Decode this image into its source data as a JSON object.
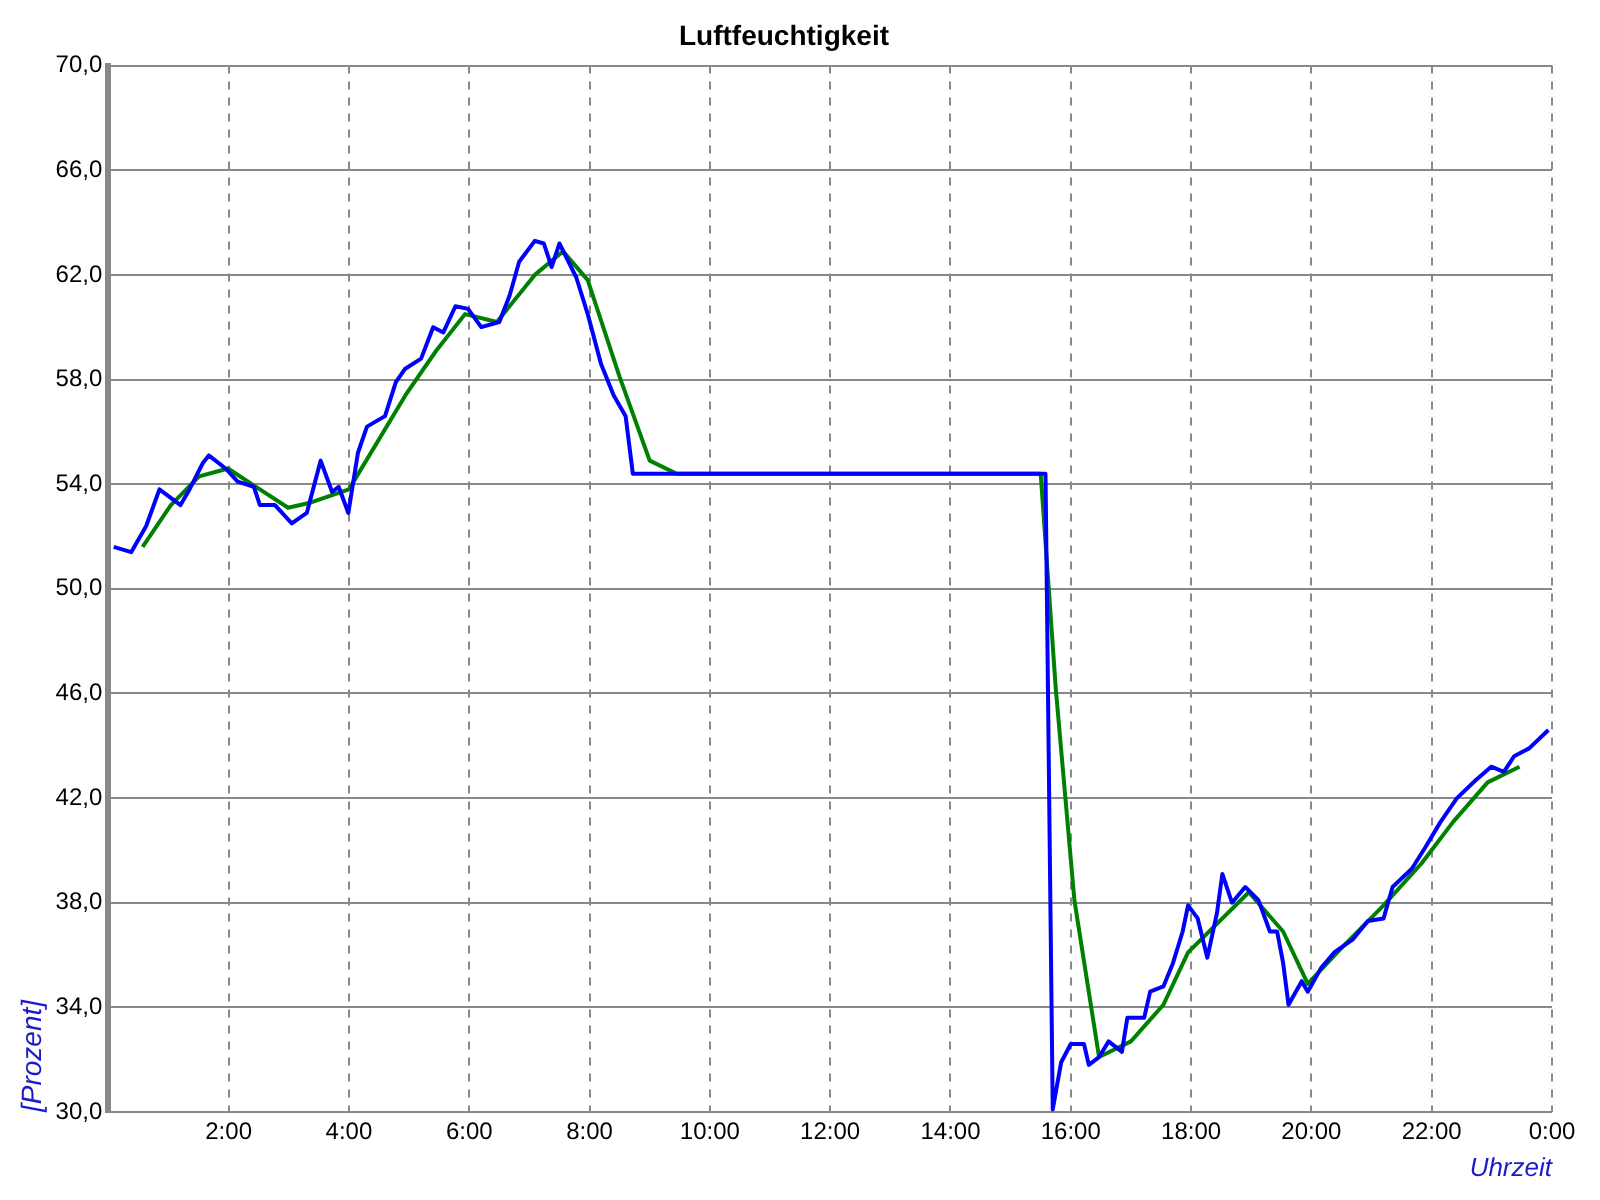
{
  "chart_data": {
    "type": "line",
    "title": "Luftfeuchtigkeit",
    "xlabel": "Uhrzeit",
    "ylabel": "[Prozent]",
    "xlim": [
      0,
      24
    ],
    "ylim": [
      30,
      70
    ],
    "xticks": [
      {
        "value": 0,
        "label": null
      },
      {
        "value": 2,
        "label": "2:00"
      },
      {
        "value": 4,
        "label": "4:00"
      },
      {
        "value": 6,
        "label": "6:00"
      },
      {
        "value": 8,
        "label": "8:00"
      },
      {
        "value": 10,
        "label": "10:00"
      },
      {
        "value": 12,
        "label": "12:00"
      },
      {
        "value": 14,
        "label": "14:00"
      },
      {
        "value": 16,
        "label": "16:00"
      },
      {
        "value": 18,
        "label": "18:00"
      },
      {
        "value": 20,
        "label": "20:00"
      },
      {
        "value": 22,
        "label": "22:00"
      },
      {
        "value": 24,
        "label": "0:00"
      }
    ],
    "yticks": [
      {
        "value": 30,
        "label": "30,0"
      },
      {
        "value": 34,
        "label": "34,0"
      },
      {
        "value": 38,
        "label": "38,0"
      },
      {
        "value": 42,
        "label": "42,0"
      },
      {
        "value": 46,
        "label": "46,0"
      },
      {
        "value": 50,
        "label": "50,0"
      },
      {
        "value": 54,
        "label": "54,0"
      },
      {
        "value": 58,
        "label": "58,0"
      },
      {
        "value": 62,
        "label": "62,0"
      },
      {
        "value": 66,
        "label": "66,0"
      },
      {
        "value": 70,
        "label": "70,0"
      }
    ],
    "grid": true,
    "legend": false,
    "marker": "none",
    "line_style": "solid",
    "series": [
      {
        "color": "#0000ff",
        "x": [
          0.09,
          0.38,
          0.63,
          0.85,
          1.2,
          1.35,
          1.57,
          1.67,
          1.95,
          2.15,
          2.42,
          2.52,
          2.77,
          3.05,
          3.3,
          3.53,
          3.72,
          3.83,
          3.99,
          4.15,
          4.3,
          4.6,
          4.78,
          4.93,
          5.2,
          5.4,
          5.57,
          5.77,
          5.98,
          6.2,
          6.5,
          6.67,
          6.83,
          7.09,
          7.24,
          7.37,
          7.5,
          7.78,
          7.97,
          8.19,
          8.4,
          8.6,
          8.72,
          15.58,
          15.7,
          15.84,
          16.0,
          16.22,
          16.3,
          16.47,
          16.63,
          16.85,
          16.94,
          17.22,
          17.32,
          17.54,
          17.7,
          17.86,
          17.95,
          18.11,
          18.27,
          18.43,
          18.52,
          18.68,
          18.9,
          19.12,
          19.31,
          19.43,
          19.53,
          19.62,
          19.84,
          19.94,
          20.16,
          20.38,
          20.69,
          20.94,
          21.2,
          21.35,
          21.67,
          21.89,
          22.15,
          22.42,
          22.74,
          22.99,
          23.2,
          23.37,
          23.62,
          23.94
        ],
        "values": [
          51.6,
          51.4,
          52.4,
          53.8,
          53.2,
          53.8,
          54.8,
          55.1,
          54.6,
          54.1,
          53.9,
          53.2,
          53.2,
          52.5,
          52.9,
          54.9,
          53.7,
          53.9,
          52.9,
          55.2,
          56.2,
          56.6,
          57.9,
          58.4,
          58.8,
          60.0,
          59.8,
          60.8,
          60.7,
          60.0,
          60.2,
          61.2,
          62.5,
          63.3,
          63.2,
          62.3,
          63.2,
          61.9,
          60.5,
          58.6,
          57.4,
          56.6,
          54.4,
          54.4,
          30.1,
          31.9,
          32.6,
          32.6,
          31.8,
          32.1,
          32.7,
          32.3,
          33.6,
          33.6,
          34.6,
          34.8,
          35.7,
          36.9,
          37.9,
          37.4,
          35.9,
          37.6,
          39.1,
          38.0,
          38.6,
          38.1,
          36.9,
          36.9,
          35.7,
          34.1,
          35.0,
          34.6,
          35.5,
          36.1,
          36.6,
          37.3,
          37.4,
          38.6,
          39.3,
          40.1,
          41.1,
          42.0,
          42.7,
          43.2,
          43.0,
          43.6,
          43.9,
          44.6
        ]
      },
      {
        "color": "#008000",
        "x": [
          0.57,
          1.04,
          1.51,
          1.99,
          2.52,
          2.99,
          3.37,
          4.0,
          4.94,
          5.45,
          5.93,
          6.46,
          7.09,
          7.56,
          7.97,
          8.5,
          9.0,
          9.45,
          15.5,
          15.75,
          16.06,
          16.47,
          17.0,
          17.54,
          17.95,
          18.96,
          19.53,
          19.94,
          20.47,
          21.2,
          21.83,
          22.36,
          22.93,
          23.46
        ],
        "values": [
          51.6,
          53.2,
          54.3,
          54.6,
          53.8,
          53.1,
          53.3,
          53.8,
          57.4,
          59.1,
          60.5,
          60.2,
          62.0,
          62.9,
          61.8,
          58.1,
          54.9,
          54.4,
          54.4,
          46.2,
          38.1,
          32.1,
          32.7,
          34.1,
          36.1,
          38.4,
          36.9,
          34.9,
          36.2,
          37.9,
          39.5,
          41.1,
          42.6,
          43.2
        ]
      }
    ]
  }
}
